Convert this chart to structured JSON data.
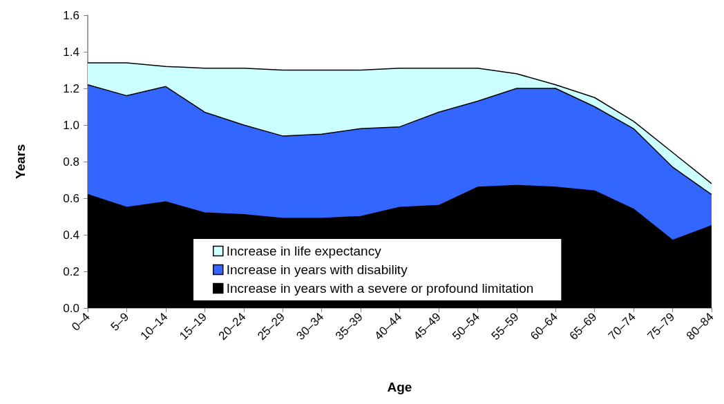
{
  "chart_data": {
    "type": "area",
    "xlabel": "Age",
    "ylabel": "Years",
    "categories": [
      "0–4",
      "5–9",
      "10–14",
      "15–19",
      "20–24",
      "25–29",
      "30–34",
      "35–39",
      "40–44",
      "45–49",
      "50–54",
      "55–59",
      "60–64",
      "65–69",
      "70–74",
      "75–79",
      "80–84"
    ],
    "series": [
      {
        "name": "Increase in life expectancy",
        "color": "#ccffff",
        "values": [
          1.34,
          1.34,
          1.32,
          1.31,
          1.31,
          1.3,
          1.3,
          1.3,
          1.31,
          1.31,
          1.31,
          1.28,
          1.22,
          1.15,
          1.02,
          0.85,
          0.68
        ]
      },
      {
        "name": "Increase in years with disability",
        "color": "#3366ff",
        "values": [
          1.22,
          1.16,
          1.21,
          1.07,
          1.0,
          0.94,
          0.95,
          0.98,
          0.99,
          1.07,
          1.13,
          1.2,
          1.2,
          1.1,
          0.98,
          0.77,
          0.62
        ]
      },
      {
        "name": "Increase in years with a severe or profound limitation",
        "color": "#000000",
        "values": [
          0.62,
          0.55,
          0.58,
          0.52,
          0.51,
          0.49,
          0.49,
          0.5,
          0.55,
          0.56,
          0.66,
          0.67,
          0.66,
          0.64,
          0.54,
          0.37,
          0.45
        ]
      }
    ],
    "ylim": [
      0,
      1.6
    ],
    "yticks": [
      {
        "value": 0,
        "label": "0.0"
      },
      0.2,
      0.4,
      0.6,
      0.8,
      {
        "value": 1,
        "label": "1.0"
      },
      1.2,
      1.4,
      1.6
    ],
    "grid": false,
    "legend": "bottom"
  }
}
